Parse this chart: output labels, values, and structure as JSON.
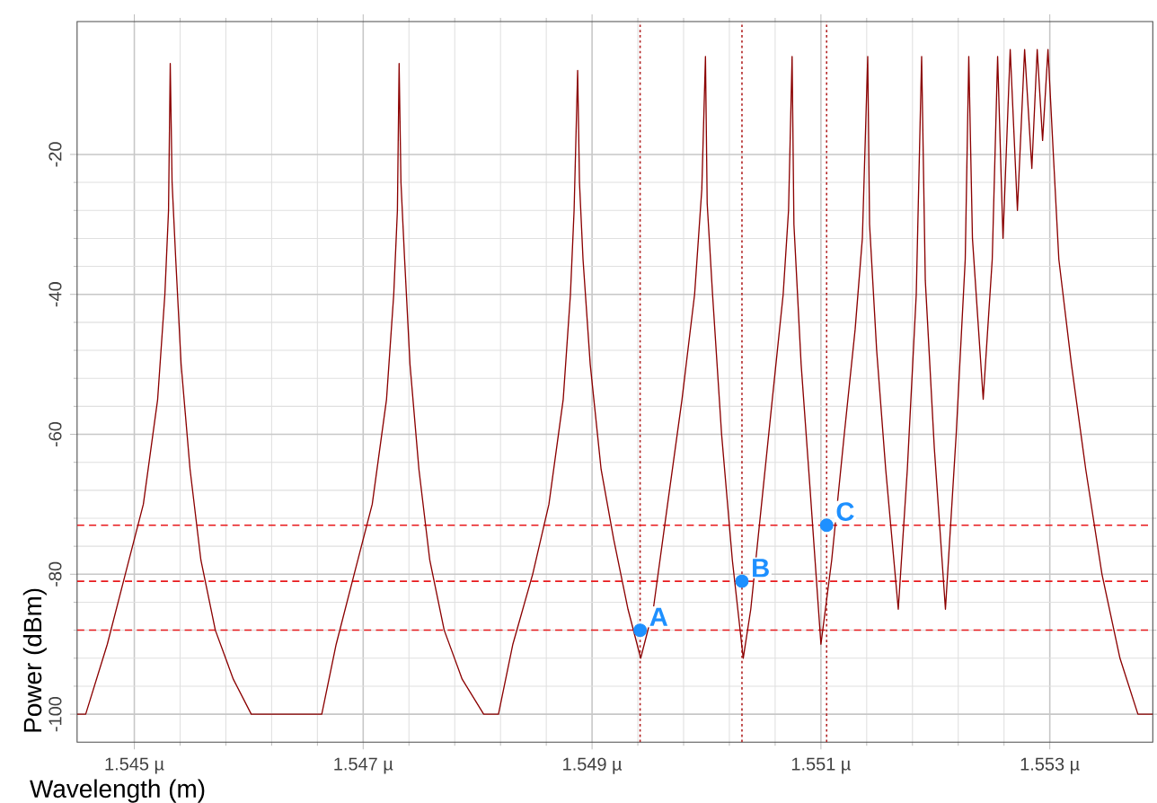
{
  "chart_data": {
    "type": "line",
    "xlabel": "Wavelength (m)",
    "ylabel": "Power (dBm)",
    "xlim": [
      1.5445,
      1.5539
    ],
    "ylim": [
      -104,
      -1
    ],
    "xticks": [
      {
        "value": 1.545,
        "label": "1.545 µ"
      },
      {
        "value": 1.547,
        "label": "1.547 µ"
      },
      {
        "value": 1.549,
        "label": "1.549 µ"
      },
      {
        "value": 1.551,
        "label": "1.551 µ"
      },
      {
        "value": 1.553,
        "label": "1.553 µ"
      }
    ],
    "yticks": [
      -100,
      -80,
      -60,
      -40,
      -20
    ],
    "grid": true,
    "line_style": "solid",
    "series": [
      {
        "color": "#8b0000",
        "marker": "none",
        "x": [
          1.5445,
          1.544575,
          1.544764,
          1.544921,
          1.545079,
          1.545204,
          1.545267,
          1.545299,
          1.545314,
          1.54533,
          1.545362,
          1.545409,
          1.545487,
          1.545582,
          1.545708,
          1.545865,
          1.546022,
          1.546638,
          1.546764,
          1.546921,
          1.547079,
          1.547204,
          1.547267,
          1.547299,
          1.547314,
          1.54733,
          1.547362,
          1.547409,
          1.547487,
          1.547582,
          1.547708,
          1.547865,
          1.548053,
          1.548182,
          1.548308,
          1.548481,
          1.548623,
          1.548748,
          1.548811,
          1.548843,
          1.548874,
          1.54889,
          1.548921,
          1.548984,
          1.549079,
          1.549189,
          1.549314,
          1.549425,
          1.549535,
          1.54966,
          1.549786,
          1.549896,
          1.549959,
          1.549991,
          1.550006,
          1.550053,
          1.550132,
          1.550226,
          1.550321,
          1.550387,
          1.550481,
          1.550575,
          1.55067,
          1.550717,
          1.550748,
          1.550764,
          1.550827,
          1.550906,
          1.551,
          1.551094,
          1.551204,
          1.551299,
          1.551362,
          1.551409,
          1.551425,
          1.551487,
          1.551566,
          1.551676,
          1.551755,
          1.551833,
          1.55188,
          1.551912,
          1.551991,
          1.552088,
          1.552182,
          1.552261,
          1.552292,
          1.552324,
          1.552418,
          1.552497,
          1.552544,
          1.552591,
          1.552654,
          1.552717,
          1.55278,
          1.552843,
          1.55289,
          1.552937,
          1.552984,
          1.553031,
          1.553079,
          1.553189,
          1.553314,
          1.553456,
          1.553613,
          1.55377,
          1.5539
        ],
        "values": [
          -100,
          -100,
          -90,
          -80,
          -70,
          -55,
          -40,
          -28,
          -7,
          -24,
          -35,
          -50,
          -65,
          -78,
          -88,
          -95,
          -100,
          -100,
          -90,
          -80,
          -70,
          -55,
          -40,
          -28,
          -7,
          -24,
          -35,
          -50,
          -65,
          -78,
          -88,
          -95,
          -100,
          -100,
          -90,
          -80,
          -70,
          -55,
          -40,
          -28,
          -8,
          -24,
          -35,
          -50,
          -65,
          -75,
          -85,
          -92,
          -85,
          -70,
          -55,
          -40,
          -25,
          -6,
          -27,
          -40,
          -60,
          -78,
          -92,
          -85,
          -70,
          -55,
          -40,
          -28,
          -6,
          -30,
          -50,
          -68,
          -90,
          -78,
          -60,
          -45,
          -32,
          -6,
          -30,
          -48,
          -65,
          -85,
          -65,
          -40,
          -6,
          -38,
          -62,
          -85,
          -60,
          -35,
          -6,
          -32,
          -55,
          -35,
          -6,
          -32,
          -5,
          -28,
          -5,
          -22,
          -5,
          -18,
          -5,
          -20,
          -35,
          -50,
          -65,
          -80,
          -92,
          -100,
          -100
        ]
      },
      {
        "type": "scatter",
        "color": "#1e90ff",
        "marker": "circle",
        "x": [
          1.54942,
          1.55031,
          1.55105
        ],
        "values": [
          -88,
          -81,
          -73
        ]
      }
    ],
    "ref_lines": [
      {
        "axis": "x",
        "value": 1.54942,
        "color": "#b22222",
        "line_style": "dotted"
      },
      {
        "axis": "x",
        "value": 1.55031,
        "color": "#b22222",
        "line_style": "dotted"
      },
      {
        "axis": "x",
        "value": 1.55105,
        "color": "#b22222",
        "line_style": "dotted"
      },
      {
        "axis": "y",
        "value": -73,
        "color": "#e8191c",
        "line_style": "dashed"
      },
      {
        "axis": "y",
        "value": -81,
        "color": "#e8191c",
        "line_style": "dashed"
      },
      {
        "axis": "y",
        "value": -88,
        "color": "#e8191c",
        "line_style": "dashed"
      }
    ],
    "annotations": [
      {
        "text": "A",
        "x": 1.54942,
        "y": -88
      },
      {
        "text": "B",
        "x": 1.55031,
        "y": -81
      },
      {
        "text": "C",
        "x": 1.55105,
        "y": -73
      }
    ]
  }
}
